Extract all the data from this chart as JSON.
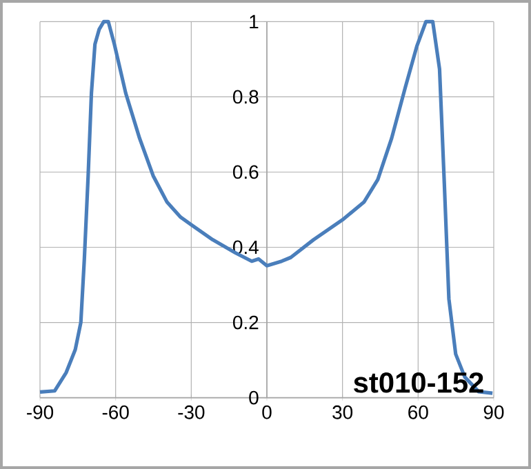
{
  "chart_data": {
    "type": "line",
    "annotations": [
      "st010-152"
    ],
    "xlim": [
      -90,
      90
    ],
    "xticks": [
      -90,
      -60,
      -30,
      0,
      30,
      60,
      90
    ],
    "ylim": [
      0,
      1
    ],
    "yticks": [
      0,
      0.2,
      0.4,
      0.6,
      0.8,
      1
    ],
    "grid": true,
    "marker": "none",
    "line_style": "solid",
    "series": [
      {
        "color": "#4a7ebb",
        "x": [
          -90,
          -84.2,
          -79.6,
          -76,
          -73.8,
          -72.4,
          -70.9,
          -69.6,
          -68.2,
          -66.5,
          -64.7,
          -62.9,
          -60.5,
          -56,
          -50.5,
          -45.1,
          -39.6,
          -34.2,
          -30,
          -21.5,
          -12.4,
          -6,
          -3.3,
          0,
          5.9,
          9.5,
          18.5,
          30,
          38.5,
          44,
          49.5,
          54.9,
          59.5,
          63.1,
          65.8,
          68.5,
          70.4,
          72.2,
          74.9,
          78.5,
          84,
          89.5
        ],
        "values": [
          0.015,
          0.018,
          0.067,
          0.128,
          0.2,
          0.37,
          0.59,
          0.81,
          0.94,
          0.98,
          1.0,
          1.0,
          0.94,
          0.81,
          0.69,
          0.59,
          0.52,
          0.48,
          0.46,
          0.42,
          0.385,
          0.363,
          0.369,
          0.351,
          0.363,
          0.373,
          0.42,
          0.473,
          0.52,
          0.58,
          0.69,
          0.825,
          0.935,
          1.0,
          1.0,
          0.874,
          0.568,
          0.263,
          0.116,
          0.055,
          0.016,
          0.012
        ]
      }
    ]
  }
}
